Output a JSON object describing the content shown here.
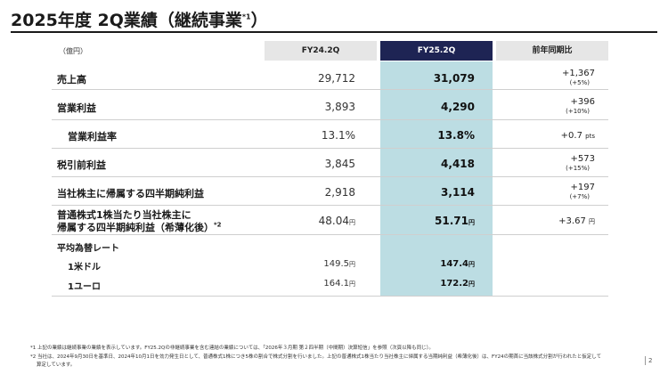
{
  "title": {
    "main": "2025年度 2Q業績（継続事業",
    "sup": "*1",
    "close": "）"
  },
  "unit": "（億円）",
  "headers": {
    "fy24": "FY24.2Q",
    "fy25": "FY25.2Q",
    "yoy": "前年同期比"
  },
  "rows": [
    {
      "label": "売上高",
      "fy24": "29,712",
      "fy25": "31,079",
      "yoy": "+1,367",
      "yoy_pct": "(+5%)"
    },
    {
      "label": "営業利益",
      "fy24": "3,893",
      "fy25": "4,290",
      "yoy": "+396",
      "yoy_pct": "(+10%)"
    },
    {
      "label": "営業利益率",
      "fy24": "13.1%",
      "fy25": "13.8%",
      "yoy": "+0.7",
      "yoy_unit": "pts"
    },
    {
      "label": "税引前利益",
      "fy24": "3,845",
      "fy25": "4,418",
      "yoy": "+573",
      "yoy_pct": "(+15%)"
    },
    {
      "label": "当社株主に帰属する四半期純利益",
      "fy24": "2,918",
      "fy25": "3,114",
      "yoy": "+197",
      "yoy_pct": "(+7%)"
    },
    {
      "label_line1": "普通株式1株当たり当社株主に",
      "label_line2": "帰属する四半期純利益（希薄化後）",
      "label_sup": "*2",
      "fy24": "48.04",
      "fy24_unit": "円",
      "fy25": "51.71",
      "fy25_unit": "円",
      "yoy": "+3.67",
      "yoy_unit": "円"
    }
  ],
  "fx": {
    "heading": "平均為替レート",
    "items": [
      {
        "label": "1米ドル",
        "fy24": "149.5",
        "fy24_unit": "円",
        "fy25": "147.4",
        "fy25_unit": "円"
      },
      {
        "label": "1ユーロ",
        "fy24": "164.1",
        "fy24_unit": "円",
        "fy25": "172.2",
        "fy25_unit": "円"
      }
    ]
  },
  "footnotes": [
    "*1 上記の業績は継続事業の業績を表示しています。FY25.2Qの非継続事業を含む連結の業績については、「2026年３月期 第２四半期（中間期）決算短信」を参照（次頁以降も同じ）。",
    "*2 当社は、2024年9月30日を基準日、2024年10月1日を効力発生日として、普通株式1株につき5株の割合で株式分割を行いました。上記の普通株式1株当たり当社株主に帰属する当期純利益（希薄化後）は、FY24の期首に当該株式分割が行われたと仮定して",
    "算定しています。"
  ],
  "page_number": "2"
}
